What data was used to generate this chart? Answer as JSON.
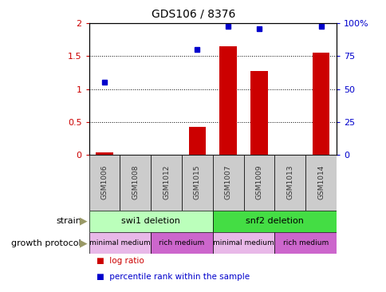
{
  "title": "GDS106 / 8376",
  "samples": [
    "GSM1006",
    "GSM1008",
    "GSM1012",
    "GSM1015",
    "GSM1007",
    "GSM1009",
    "GSM1013",
    "GSM1014"
  ],
  "log_ratio": [
    0.04,
    0.0,
    0.0,
    0.42,
    1.65,
    1.27,
    0.0,
    1.56
  ],
  "percentile_rank_scaled": [
    1.1,
    0.0,
    0.0,
    1.6,
    1.96,
    1.92,
    0.0,
    1.96
  ],
  "strain_groups": [
    {
      "label": "swi1 deletion",
      "start": 0,
      "end": 3,
      "color": "#bbffbb"
    },
    {
      "label": "snf2 deletion",
      "start": 4,
      "end": 7,
      "color": "#44dd44"
    }
  ],
  "growth_protocol_groups": [
    {
      "label": "minimal medium",
      "start": 0,
      "end": 1,
      "color": "#e8b8e8"
    },
    {
      "label": "rich medium",
      "start": 2,
      "end": 3,
      "color": "#cc66cc"
    },
    {
      "label": "minimal medium",
      "start": 4,
      "end": 5,
      "color": "#e8b8e8"
    },
    {
      "label": "rich medium",
      "start": 6,
      "end": 7,
      "color": "#cc66cc"
    }
  ],
  "ylim_left": [
    0,
    2
  ],
  "yticks_left": [
    0,
    0.5,
    1.0,
    1.5,
    2.0
  ],
  "ytick_labels_left": [
    "0",
    "0.5",
    "1",
    "1.5",
    "2"
  ],
  "yticks_right": [
    0,
    25,
    50,
    75,
    100
  ],
  "ytick_labels_right": [
    "0",
    "25",
    "50",
    "75",
    "100%"
  ],
  "bar_color": "#cc0000",
  "dot_color": "#0000cc",
  "left_tick_color": "#cc0000",
  "right_tick_color": "#0000cc",
  "legend_items": [
    {
      "label": "log ratio",
      "color": "#cc0000"
    },
    {
      "label": "percentile rank within the sample",
      "color": "#0000cc"
    }
  ],
  "strain_label": "strain",
  "growth_label": "growth protocol",
  "sample_box_color": "#cccccc",
  "background_color": "#ffffff",
  "arrow_color": "#999966"
}
